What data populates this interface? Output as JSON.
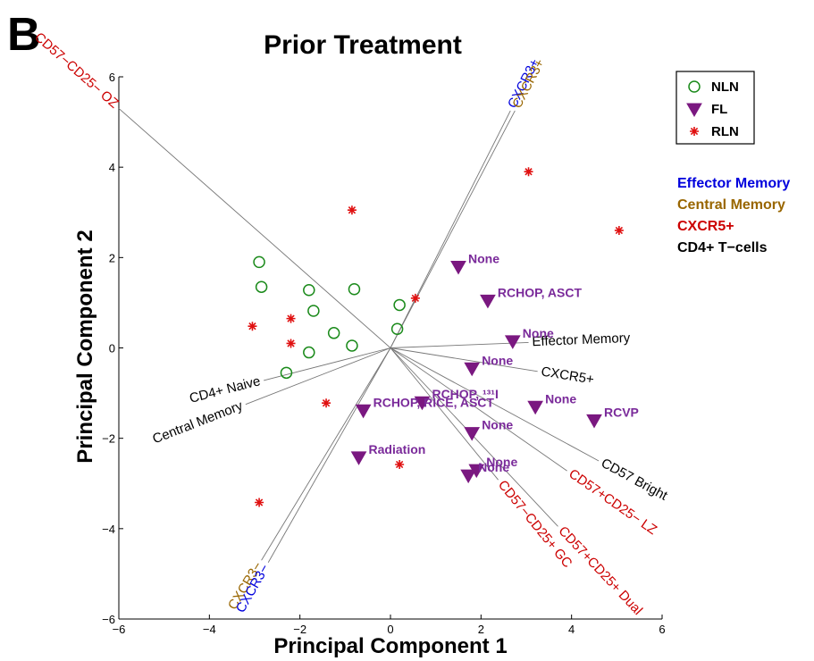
{
  "panel_letter": "B",
  "chart_data": {
    "type": "scatter",
    "title": "Prior Treatment",
    "xlabel": "Principal Component 1",
    "ylabel": "Principal Component 2",
    "xlim": [
      -6,
      6
    ],
    "ylim": [
      -6,
      6
    ],
    "xticks": [
      -6,
      -4,
      -2,
      0,
      2,
      4,
      6
    ],
    "yticks": [
      -6,
      -4,
      -2,
      0,
      2,
      4,
      6
    ],
    "xtick_labels": [
      "−6",
      "−4",
      "−2",
      "0",
      "2",
      "4",
      "6"
    ],
    "ytick_labels": [
      "−6",
      "−4",
      "−2",
      "0",
      "2",
      "4",
      "6"
    ],
    "grid": false,
    "legend_position": "top-right",
    "series": [
      {
        "name": "NLN",
        "marker": "circle",
        "color": "#1a8a1a",
        "points": [
          {
            "x": -2.9,
            "y": 1.9
          },
          {
            "x": -2.85,
            "y": 1.35
          },
          {
            "x": -1.8,
            "y": 1.28
          },
          {
            "x": -1.7,
            "y": 0.82
          },
          {
            "x": -0.8,
            "y": 1.3
          },
          {
            "x": 0.2,
            "y": 0.95
          },
          {
            "x": -1.25,
            "y": 0.33
          },
          {
            "x": -0.85,
            "y": 0.05
          },
          {
            "x": -1.8,
            "y": -0.1
          },
          {
            "x": 0.15,
            "y": 0.42
          },
          {
            "x": -2.3,
            "y": -0.55
          }
        ]
      },
      {
        "name": "FL",
        "marker": "triangle-down",
        "color": "#7a1880",
        "points": [
          {
            "x": 1.5,
            "y": 1.8,
            "label": "None"
          },
          {
            "x": 2.15,
            "y": 1.05,
            "label": "RCHOP, ASCT"
          },
          {
            "x": 2.7,
            "y": 0.15,
            "label": "None"
          },
          {
            "x": 1.8,
            "y": -0.45,
            "label": "None"
          },
          {
            "x": 0.7,
            "y": -1.2,
            "label": "RCHOP, ¹³¹I"
          },
          {
            "x": 3.2,
            "y": -1.3,
            "label": "None"
          },
          {
            "x": 4.5,
            "y": -1.6,
            "label": "RCVP"
          },
          {
            "x": -0.6,
            "y": -1.38,
            "label": "RCHOP, RICE, ASCT"
          },
          {
            "x": 1.8,
            "y": -1.88,
            "label": "None"
          },
          {
            "x": -0.7,
            "y": -2.42,
            "label": "Radiation"
          },
          {
            "x": 1.9,
            "y": -2.7,
            "label": "None"
          },
          {
            "x": 1.72,
            "y": -2.82,
            "label": "None"
          }
        ]
      },
      {
        "name": "RLN",
        "marker": "asterisk",
        "color": "#e01010",
        "points": [
          {
            "x": -0.85,
            "y": 3.05
          },
          {
            "x": 3.05,
            "y": 3.9
          },
          {
            "x": 5.05,
            "y": 2.6
          },
          {
            "x": 0.55,
            "y": 1.1
          },
          {
            "x": -3.05,
            "y": 0.48
          },
          {
            "x": -2.2,
            "y": 0.65
          },
          {
            "x": -2.2,
            "y": 0.1
          },
          {
            "x": -1.42,
            "y": -1.22
          },
          {
            "x": 0.2,
            "y": -2.58
          },
          {
            "x": -2.9,
            "y": -3.42
          }
        ]
      }
    ],
    "loadings": [
      {
        "label": "CD57−CD25− OZ",
        "color": "#cc0000",
        "x": -6.0,
        "y": 5.3
      },
      {
        "label": "CXCR3+",
        "color": "#0000dd",
        "x": 2.65,
        "y": 5.25
      },
      {
        "label": "CXCR3+",
        "color": "#996600",
        "x": 2.75,
        "y": 5.25
      },
      {
        "label": "Effector Memory",
        "color": "#000000",
        "x": 3.05,
        "y": 0.12
      },
      {
        "label": "CXCR5+",
        "color": "#000000",
        "x": 3.25,
        "y": -0.52
      },
      {
        "label": "CD57 Bright",
        "color": "#000000",
        "x": 4.6,
        "y": -2.5
      },
      {
        "label": "CD57+CD25− LZ",
        "color": "#cc0000",
        "x": 3.9,
        "y": -2.72
      },
      {
        "label": "CD57+CD25+ Dual",
        "color": "#cc0000",
        "x": 3.7,
        "y": -3.95
      },
      {
        "label": "CD57−CD25+ GC",
        "color": "#cc0000",
        "x": 2.38,
        "y": -2.92
      },
      {
        "label": "CD4+ Naive",
        "color": "#000000",
        "x": -2.8,
        "y": -0.72
      },
      {
        "label": "Central Memory",
        "color": "#000000",
        "x": -3.2,
        "y": -1.25
      },
      {
        "label": "CXCR3−",
        "color": "#996600",
        "x": -2.85,
        "y": -4.7
      },
      {
        "label": "CXCR3−",
        "color": "#0000dd",
        "x": -2.7,
        "y": -4.75
      }
    ],
    "categories_legend": [
      {
        "label": "Effector Memory",
        "color": "#0000dd"
      },
      {
        "label": "Central Memory",
        "color": "#996600"
      },
      {
        "label": "CXCR5+",
        "color": "#cc0000"
      },
      {
        "label": "CD4+ T−cells",
        "color": "#000000"
      }
    ]
  }
}
